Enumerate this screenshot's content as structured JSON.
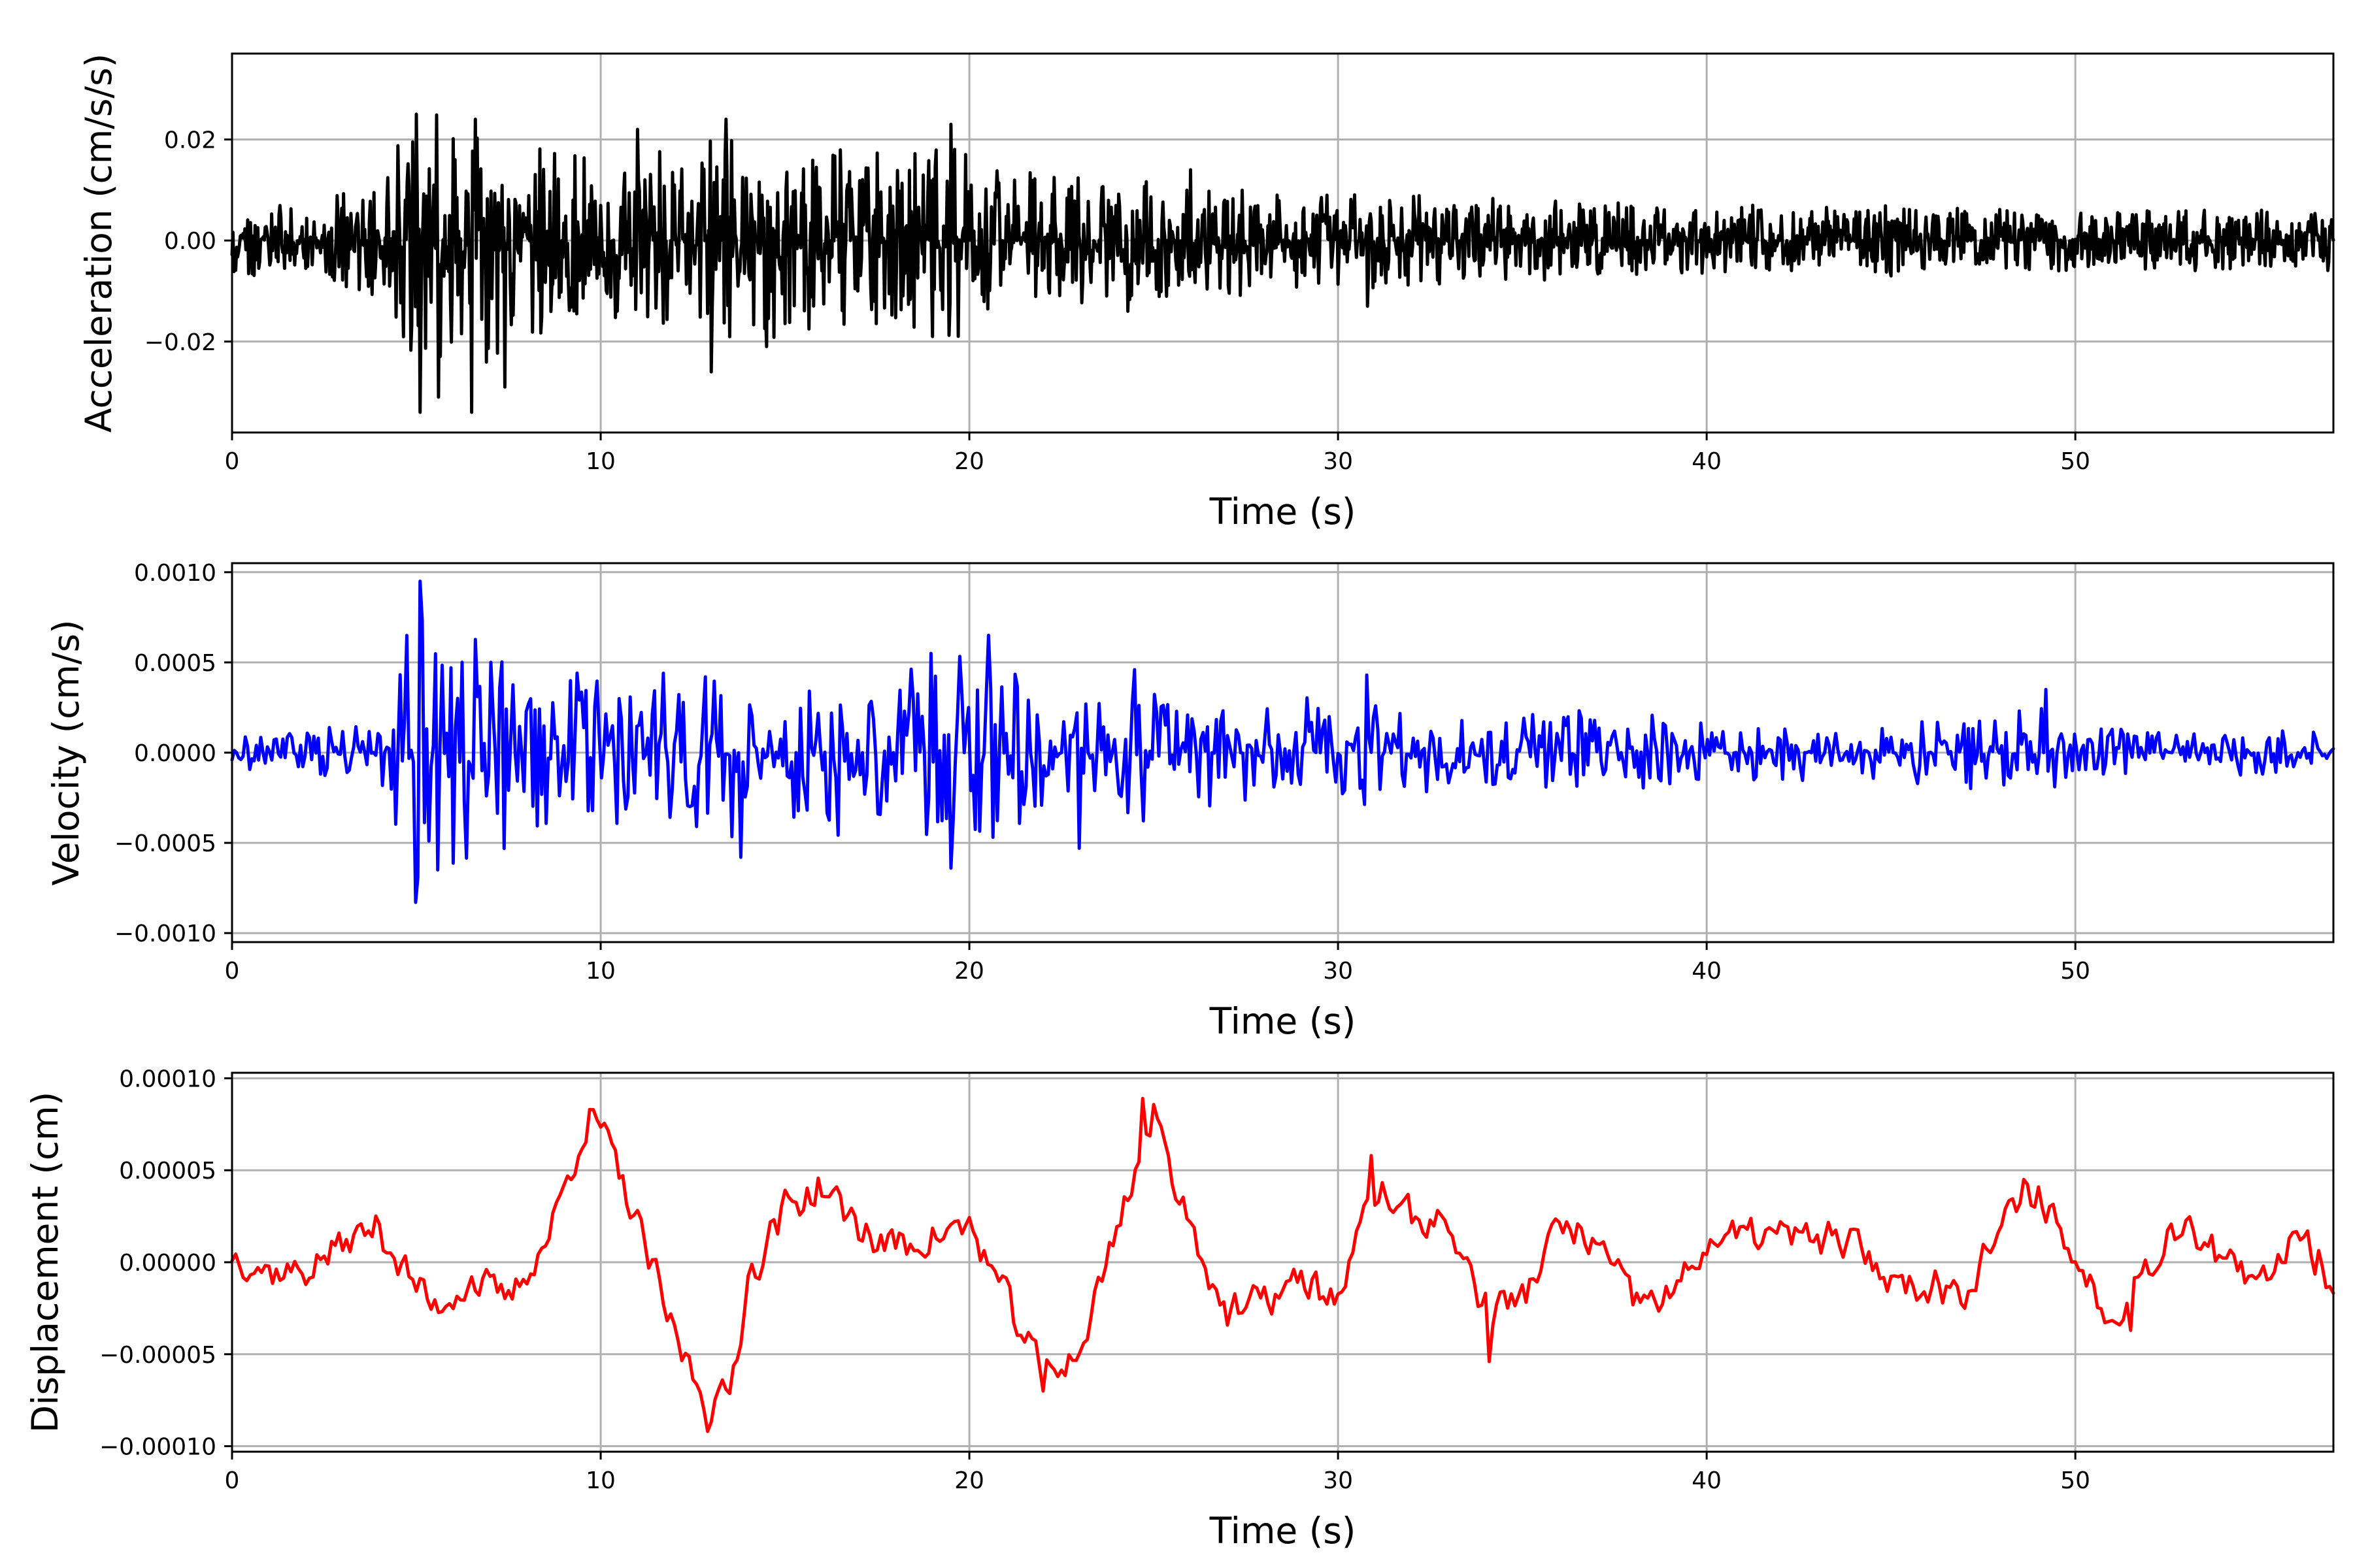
{
  "chart_data": [
    {
      "type": "line",
      "xlabel": "Time (s)",
      "ylabel": "Acceleration (cm/s/s)",
      "xlim": [
        0,
        57
      ],
      "ylim": [
        -0.038,
        0.037
      ],
      "xticks": [
        0,
        10,
        20,
        30,
        40,
        50
      ],
      "xtick_labels": [
        "0",
        "10",
        "20",
        "30",
        "40",
        "50"
      ],
      "yticks": [
        -0.02,
        0.0,
        0.02
      ],
      "ytick_labels": [
        "−0.02",
        "0.00",
        "0.02"
      ],
      "grid": true,
      "color": "#000000",
      "envelope": [
        [
          0,
          0.008
        ],
        [
          2,
          0.007
        ],
        [
          4,
          0.012
        ],
        [
          4.5,
          0.022
        ],
        [
          5,
          0.026
        ],
        [
          6,
          0.025
        ],
        [
          7,
          0.024
        ],
        [
          8,
          0.02
        ],
        [
          10,
          0.016
        ],
        [
          12,
          0.018
        ],
        [
          13,
          0.024
        ],
        [
          14,
          0.02
        ],
        [
          16,
          0.018
        ],
        [
          18,
          0.018
        ],
        [
          19.5,
          0.022
        ],
        [
          20,
          0.016
        ],
        [
          22,
          0.013
        ],
        [
          24,
          0.012
        ],
        [
          27,
          0.011
        ],
        [
          30,
          0.01
        ],
        [
          35,
          0.008
        ],
        [
          40,
          0.007
        ],
        [
          45,
          0.007
        ],
        [
          50,
          0.006
        ],
        [
          57,
          0.006
        ]
      ],
      "peaks": [
        [
          5.0,
          0.025
        ],
        [
          5.1,
          -0.034
        ],
        [
          5.6,
          -0.031
        ],
        [
          6.5,
          -0.034
        ],
        [
          6.6,
          0.024
        ],
        [
          7.4,
          -0.029
        ],
        [
          11.0,
          0.022
        ],
        [
          13.0,
          -0.026
        ],
        [
          13.4,
          0.024
        ],
        [
          14.5,
          -0.021
        ],
        [
          19.5,
          0.023
        ],
        [
          19.0,
          -0.019
        ],
        [
          24.3,
          -0.014
        ],
        [
          26.0,
          0.014
        ],
        [
          30.8,
          -0.013
        ]
      ],
      "sample_step": 0.025,
      "seed": 11
    },
    {
      "type": "line",
      "xlabel": "Time (s)",
      "ylabel": "Velocity (cm/s)",
      "xlim": [
        0,
        57
      ],
      "ylim": [
        -0.00105,
        0.00105
      ],
      "xticks": [
        0,
        10,
        20,
        30,
        40,
        50
      ],
      "xtick_labels": [
        "0",
        "10",
        "20",
        "30",
        "40",
        "50"
      ],
      "yticks": [
        -0.001,
        -0.0005,
        0.0,
        0.0005,
        0.001
      ],
      "ytick_labels": [
        "−0.0010",
        "−0.0005",
        "0.0000",
        "0.0005",
        "0.0010"
      ],
      "grid": true,
      "color": "#0000ff",
      "envelope": [
        [
          0,
          0.00012
        ],
        [
          4,
          0.00015
        ],
        [
          4.5,
          0.0005
        ],
        [
          5,
          0.0009
        ],
        [
          6,
          0.0007
        ],
        [
          8,
          0.0005
        ],
        [
          10,
          0.00045
        ],
        [
          13,
          0.00055
        ],
        [
          15,
          0.0004
        ],
        [
          17,
          0.0005
        ],
        [
          20,
          0.00058
        ],
        [
          22,
          0.00035
        ],
        [
          25,
          0.0004
        ],
        [
          27,
          0.00028
        ],
        [
          30,
          0.00032
        ],
        [
          33,
          0.0002
        ],
        [
          37,
          0.00025
        ],
        [
          40,
          0.00018
        ],
        [
          45,
          0.00017
        ],
        [
          49,
          0.0003
        ],
        [
          50,
          0.00015
        ],
        [
          53,
          0.00012
        ],
        [
          57,
          0.00015
        ]
      ],
      "peaks": [
        [
          5.1,
          0.00095
        ],
        [
          5.0,
          -0.00083
        ],
        [
          5.6,
          -0.00065
        ],
        [
          13.8,
          -0.00058
        ],
        [
          19.5,
          -0.00064
        ],
        [
          20.5,
          0.00065
        ],
        [
          23.0,
          -0.00053
        ],
        [
          24.5,
          0.00046
        ],
        [
          30.8,
          0.00043
        ],
        [
          49.2,
          0.00035
        ]
      ],
      "sample_step": 0.06,
      "seed": 23
    },
    {
      "type": "line",
      "xlabel": "Time (s)",
      "ylabel": "Displacement (cm)",
      "xlim": [
        0,
        57
      ],
      "ylim": [
        -0.000103,
        0.000103
      ],
      "xticks": [
        0,
        10,
        20,
        30,
        40,
        50
      ],
      "xtick_labels": [
        "0",
        "10",
        "20",
        "30",
        "40",
        "50"
      ],
      "yticks": [
        -0.0001,
        -5e-05,
        0.0,
        5e-05,
        0.0001
      ],
      "ytick_labels": [
        "−0.00010",
        "−0.00005",
        "0.00000",
        "0.00005",
        "0.00010"
      ],
      "grid": true,
      "color": "#ff0000",
      "trend": [
        [
          0,
          5e-06
        ],
        [
          1,
          -5e-06
        ],
        [
          2,
          -5e-06
        ],
        [
          3,
          1e-05
        ],
        [
          4,
          2e-05
        ],
        [
          4.5,
          0.0
        ],
        [
          5.5,
          -2.5e-05
        ],
        [
          6.5,
          -1e-05
        ],
        [
          7.5,
          -2e-05
        ],
        [
          8.5,
          1e-05
        ],
        [
          9.5,
          7e-05
        ],
        [
          10,
          7.5e-05
        ],
        [
          11,
          2e-05
        ],
        [
          12,
          -4e-05
        ],
        [
          13,
          -8e-05
        ],
        [
          13.5,
          -7e-05
        ],
        [
          14,
          -1e-05
        ],
        [
          15,
          3e-05
        ],
        [
          16,
          4e-05
        ],
        [
          17.5,
          1e-05
        ],
        [
          18.5,
          1e-05
        ],
        [
          20,
          2e-05
        ],
        [
          21,
          -2e-05
        ],
        [
          22,
          -6e-05
        ],
        [
          23,
          -5e-05
        ],
        [
          24,
          2e-05
        ],
        [
          25,
          8e-05
        ],
        [
          26,
          2e-05
        ],
        [
          27,
          -3e-05
        ],
        [
          28,
          -2e-05
        ],
        [
          29,
          -1e-05
        ],
        [
          30,
          -2e-05
        ],
        [
          31,
          4e-05
        ],
        [
          32,
          2.5e-05
        ],
        [
          33,
          2e-05
        ],
        [
          34,
          -2.5e-05
        ],
        [
          35,
          -2e-05
        ],
        [
          36,
          2e-05
        ],
        [
          37,
          1e-05
        ],
        [
          38,
          -2e-05
        ],
        [
          39,
          -2e-05
        ],
        [
          40,
          1e-05
        ],
        [
          41,
          1.5e-05
        ],
        [
          42,
          1.5e-05
        ],
        [
          44,
          1e-05
        ],
        [
          45,
          -1e-05
        ],
        [
          47,
          -1.5e-05
        ],
        [
          48,
          2e-05
        ],
        [
          49,
          4e-05
        ],
        [
          50,
          0.0
        ],
        [
          51,
          -3e-05
        ],
        [
          52,
          0.0
        ],
        [
          53,
          2.5e-05
        ],
        [
          54,
          0.0
        ],
        [
          55,
          -1.5e-05
        ],
        [
          56,
          2e-05
        ],
        [
          57,
          -1e-05
        ]
      ],
      "jitter": 1.2e-05,
      "peaks": [
        [
          9.7,
          8.3e-05
        ],
        [
          12.9,
          -9.2e-05
        ],
        [
          24.7,
          8.9e-05
        ],
        [
          22.0,
          -7e-05
        ],
        [
          30.9,
          5.8e-05
        ],
        [
          34.1,
          -5.4e-05
        ],
        [
          48.6,
          4.5e-05
        ],
        [
          51.5,
          -3.7e-05
        ]
      ],
      "sample_step": 0.1,
      "seed": 37
    }
  ]
}
